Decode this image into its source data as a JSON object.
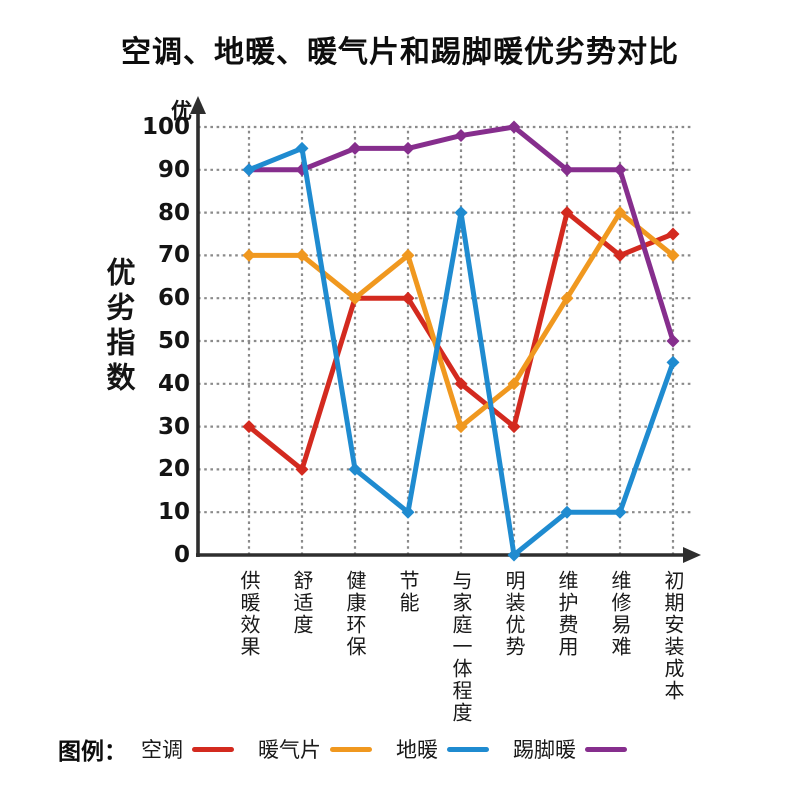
{
  "title": "空调、地暖、暖气片和踢脚暖优劣势对比",
  "legend": {
    "prefix": "图例："
  },
  "chart_data": {
    "type": "line",
    "title": "空调、地暖、暖气片和踢脚暖优劣势对比",
    "categories": [
      "供暖效果",
      "舒适度",
      "健康环保",
      "节能",
      "与家庭一体程度",
      "明装优势",
      "维护费用",
      "维修易难",
      "初期安装成本"
    ],
    "series": [
      {
        "name": "空调",
        "key": "air-conditioner",
        "color": "#d32a1f",
        "values": [
          30,
          20,
          60,
          60,
          40,
          30,
          80,
          70,
          75
        ]
      },
      {
        "name": "暖气片",
        "key": "radiator",
        "color": "#f0981f",
        "values": [
          70,
          70,
          60,
          70,
          30,
          40,
          60,
          80,
          70
        ]
      },
      {
        "name": "地暖",
        "key": "floor-heating",
        "color": "#1f8bd0",
        "values": [
          90,
          95,
          20,
          10,
          80,
          0,
          10,
          10,
          45
        ]
      },
      {
        "name": "踢脚暖",
        "key": "baseboard-heater",
        "color": "#862e8d",
        "values": [
          90,
          90,
          95,
          95,
          98,
          100,
          90,
          90,
          50
        ]
      }
    ],
    "ylabel": "优劣指数",
    "y_top_label": "优",
    "xlabel": "",
    "y_ticks": [
      0,
      10,
      20,
      30,
      40,
      50,
      60,
      70,
      80,
      90,
      100
    ],
    "ylim": [
      0,
      100
    ],
    "grid": "dotted",
    "grid_color": "#8a8a8a",
    "axis_color": "#2e2e2e",
    "legend_position": "bottom"
  }
}
